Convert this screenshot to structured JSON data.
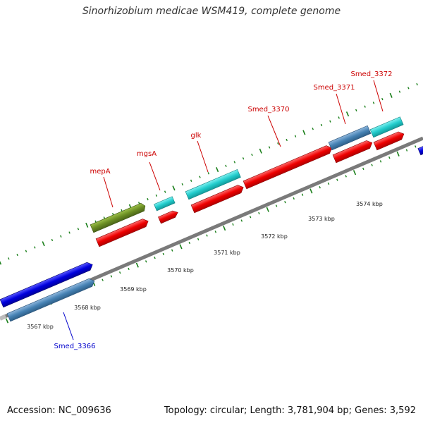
{
  "title": "Sinorhizobium medicae WSM419, complete genome",
  "footer": {
    "accession": "Accession: NC_009636",
    "summary": "Topology: circular; Length: 3,781,904 bp; Genes: 3,592"
  },
  "colors": {
    "backbone": "#888888",
    "cds": "#ee0000",
    "gene_cyan": "#22cccc",
    "gene_olive": "#6b8e23",
    "gene_blue": "#0000dd",
    "gene_steel": "#4682b4",
    "label_red": "#cc0000",
    "label_blue": "#0000cc",
    "tick": "#1a7f1a"
  },
  "axis": {
    "kbp_ticks": [
      "3567 kbp",
      "3568 kbp",
      "3569 kbp",
      "3570 kbp",
      "3571 kbp",
      "3572 kbp",
      "3573 kbp",
      "3574 kbp"
    ]
  },
  "gene_labels": [
    "mepA",
    "mgsA",
    "glk",
    "Smed_3370",
    "Smed_3371",
    "Smed_3372",
    "Smed_3366"
  ]
}
